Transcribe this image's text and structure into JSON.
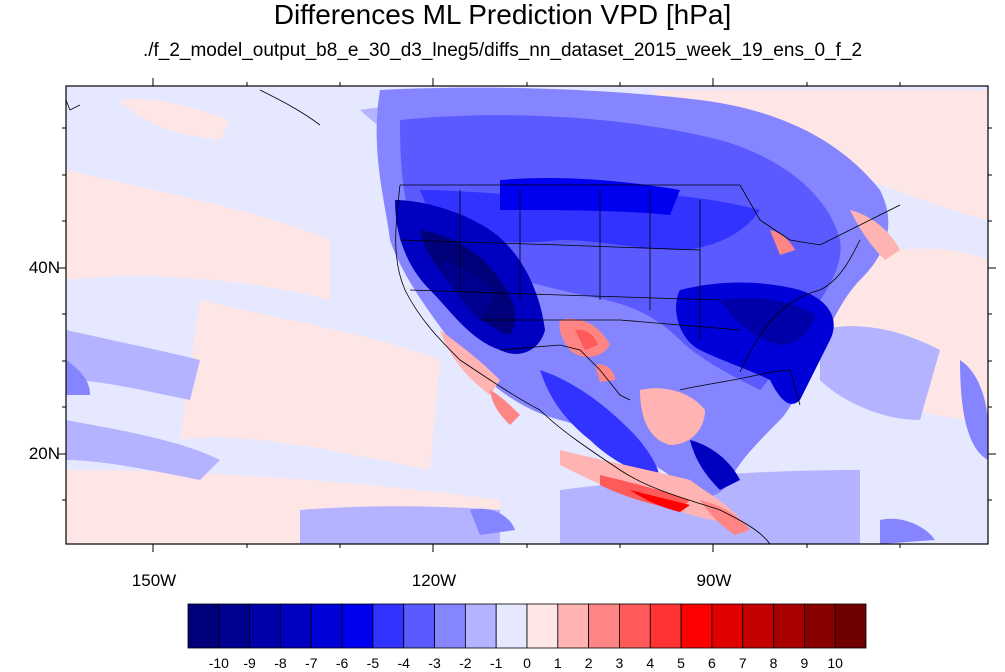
{
  "title": "Differences ML Prediction VPD [hPa]",
  "subtitle": "./f_2_model_output_b8_e_30_d3_lneg5/diffs_nn_dataset_2015_week_19_ens_0_f_2",
  "map": {
    "lon_ticks": [
      "150W",
      "120W",
      "90W"
    ],
    "lat_ticks": [
      "40N",
      "20N"
    ]
  },
  "colorbar": {
    "labels": [
      "-10",
      "-9",
      "-8",
      "-7",
      "-6",
      "-5",
      "-4",
      "-3",
      "-2",
      "-1",
      "0",
      "1",
      "2",
      "3",
      "4",
      "5",
      "6",
      "7",
      "8",
      "9",
      "10"
    ],
    "colors": [
      "#00007a",
      "#000090",
      "#0000a8",
      "#0000c0",
      "#0000d8",
      "#0000f0",
      "#3333ff",
      "#5a5aff",
      "#8585ff",
      "#b3b3ff",
      "#e6e8ff",
      "#ffe6e6",
      "#ffb3b3",
      "#ff8585",
      "#ff5a5a",
      "#ff3333",
      "#ff0000",
      "#e00000",
      "#c40000",
      "#a80000",
      "#8a0000",
      "#700000"
    ]
  }
}
